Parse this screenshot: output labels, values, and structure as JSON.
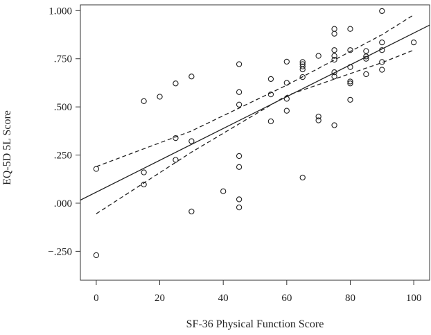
{
  "chart_data": {
    "type": "scatter",
    "xlabel": "SF-36 Physical Function Score",
    "ylabel": "EQ-5D 5L Score",
    "xlim": [
      -5,
      105
    ],
    "ylim": [
      -0.4,
      1.03
    ],
    "xticks": [
      0,
      20,
      40,
      60,
      80,
      100
    ],
    "yticks": [
      -0.25,
      0.0,
      0.25,
      0.5,
      0.75,
      1.0
    ],
    "xtick_labels": [
      "0",
      "20",
      "40",
      "60",
      "80",
      "100"
    ],
    "ytick_labels": [
      "−.250",
      ".000",
      ".250",
      ".500",
      ".750",
      "1.000"
    ],
    "grid": false,
    "points": [
      [
        0,
        0.178
      ],
      [
        0,
        -0.27
      ],
      [
        15,
        0.53
      ],
      [
        15,
        0.16
      ],
      [
        15,
        0.097
      ],
      [
        20,
        0.553
      ],
      [
        25,
        0.622
      ],
      [
        25,
        0.338
      ],
      [
        25,
        0.225
      ],
      [
        30,
        0.658
      ],
      [
        30,
        0.322
      ],
      [
        30,
        -0.043
      ],
      [
        40,
        0.062
      ],
      [
        45,
        0.722
      ],
      [
        45,
        0.577
      ],
      [
        45,
        0.512
      ],
      [
        45,
        0.245
      ],
      [
        45,
        0.188
      ],
      [
        45,
        0.02
      ],
      [
        45,
        -0.022
      ],
      [
        55,
        0.645
      ],
      [
        55,
        0.565
      ],
      [
        55,
        0.425
      ],
      [
        60,
        0.735
      ],
      [
        60,
        0.625
      ],
      [
        60,
        0.542
      ],
      [
        60,
        0.48
      ],
      [
        65,
        0.733
      ],
      [
        65,
        0.722
      ],
      [
        65,
        0.71
      ],
      [
        65,
        0.695
      ],
      [
        65,
        0.655
      ],
      [
        65,
        0.133
      ],
      [
        70,
        0.765
      ],
      [
        70,
        0.45
      ],
      [
        70,
        0.43
      ],
      [
        75,
        0.905
      ],
      [
        75,
        0.88
      ],
      [
        75,
        0.795
      ],
      [
        75,
        0.765
      ],
      [
        75,
        0.745
      ],
      [
        75,
        0.68
      ],
      [
        75,
        0.658
      ],
      [
        75,
        0.405
      ],
      [
        80,
        0.905
      ],
      [
        80,
        0.795
      ],
      [
        80,
        0.707
      ],
      [
        80,
        0.632
      ],
      [
        80,
        0.622
      ],
      [
        80,
        0.537
      ],
      [
        85,
        0.79
      ],
      [
        85,
        0.762
      ],
      [
        85,
        0.75
      ],
      [
        85,
        0.67
      ],
      [
        90,
        0.998
      ],
      [
        90,
        0.835
      ],
      [
        90,
        0.795
      ],
      [
        90,
        0.733
      ],
      [
        90,
        0.693
      ],
      [
        100,
        0.835
      ]
    ],
    "fit_line": [
      [
        -5,
        0.016
      ],
      [
        105,
        0.925
      ]
    ],
    "confidence_band": {
      "upper": [
        [
          0,
          0.19
        ],
        [
          30,
          0.375
        ],
        [
          60,
          0.613
        ],
        [
          90,
          0.875
        ],
        [
          100,
          0.978
        ]
      ],
      "lower": [
        [
          0,
          -0.055
        ],
        [
          30,
          0.265
        ],
        [
          60,
          0.559
        ],
        [
          90,
          0.73
        ],
        [
          100,
          0.795
        ]
      ]
    }
  }
}
